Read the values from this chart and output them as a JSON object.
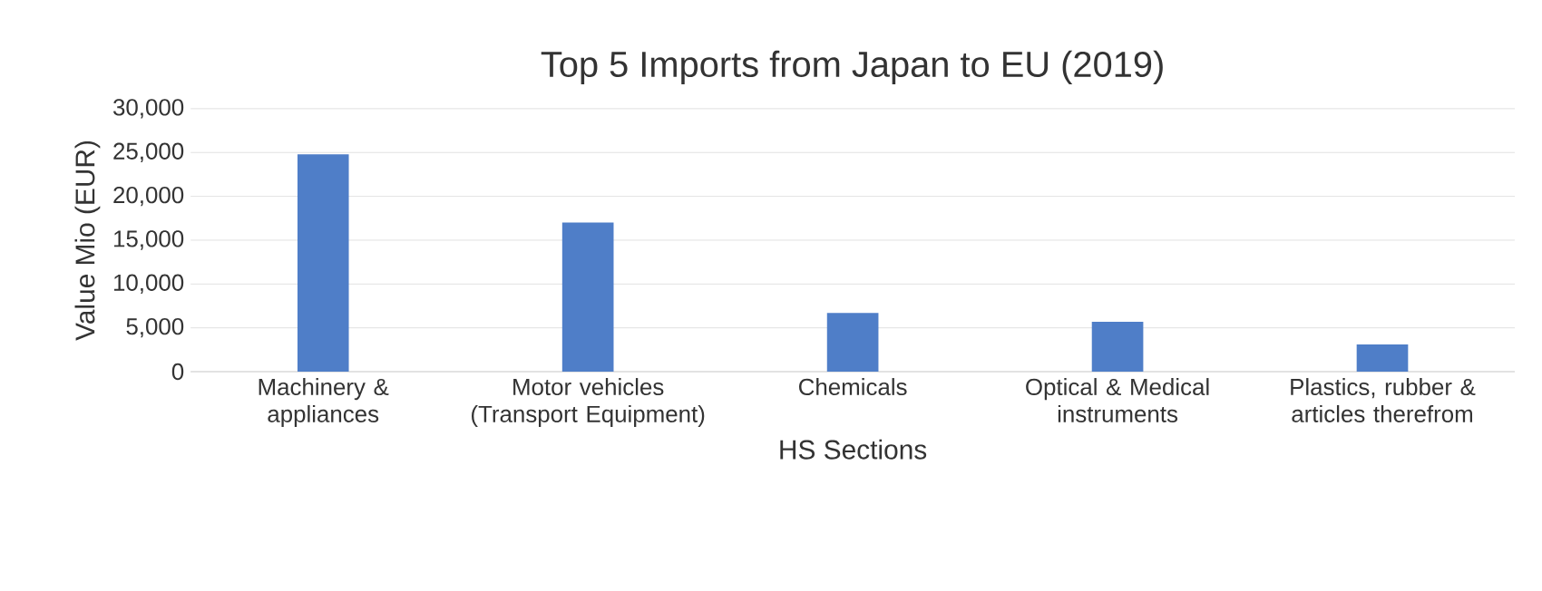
{
  "chart_data": {
    "type": "bar",
    "title": "Top 5 Imports from Japan to EU (2019)",
    "xlabel": "HS Sections",
    "ylabel": "Value Mio (EUR)",
    "categories": [
      "Machinery & appliances",
      "Motor vehicles (Transport Equipment)",
      "Chemicals",
      "Optical & Medical instruments",
      "Plastics, rubber & articles therefrom"
    ],
    "values": [
      24800,
      17000,
      6700,
      5700,
      3100
    ],
    "color": "#4f7ec8",
    "ylim": [
      0,
      30000
    ],
    "yticks": [
      {
        "value": 0,
        "label": "0"
      },
      {
        "value": 5000,
        "label": "5,000"
      },
      {
        "value": 10000,
        "label": "10,000"
      },
      {
        "value": 15000,
        "label": "15,000"
      },
      {
        "value": 20000,
        "label": "20,000"
      },
      {
        "value": 25000,
        "label": "25,000"
      },
      {
        "value": 30000,
        "label": "30,000"
      }
    ],
    "grid": "y"
  }
}
